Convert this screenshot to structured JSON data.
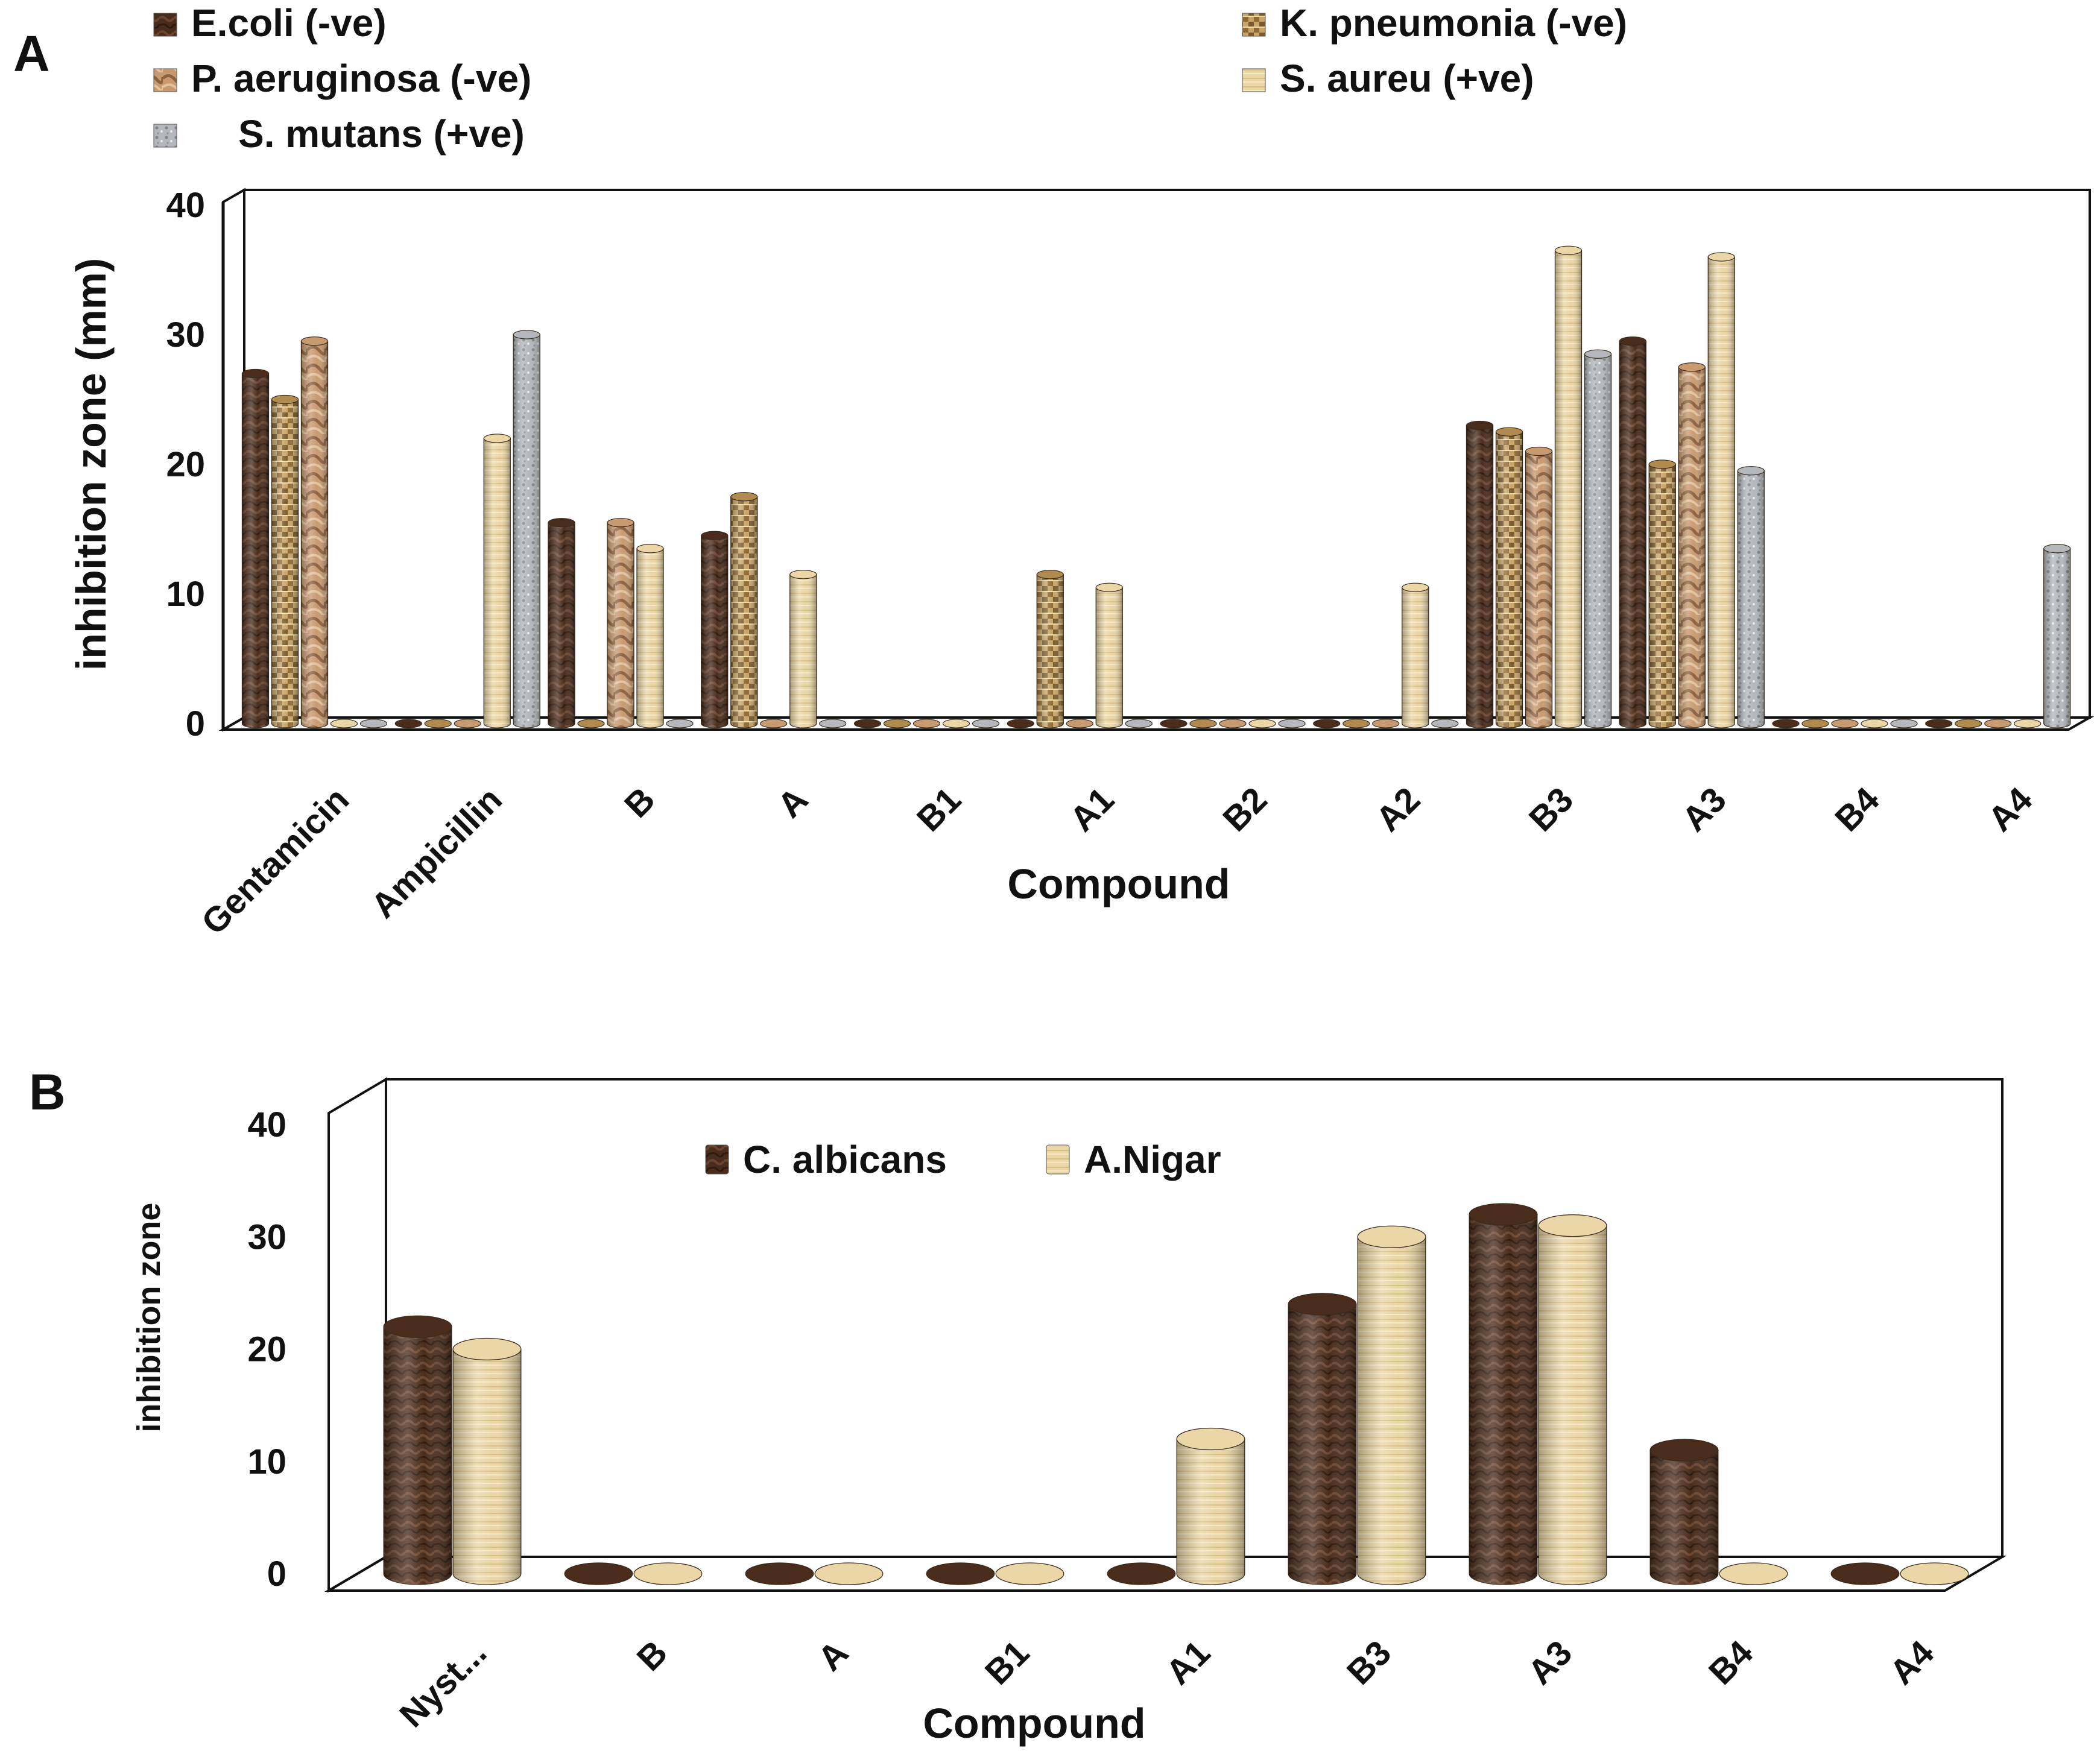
{
  "panels": {
    "a_letter": "A",
    "b_letter": "B"
  },
  "chart_data": [
    {
      "type": "bar",
      "title": "",
      "xlabel": "Compound",
      "ylabel": "inhibition zone (mm)",
      "ylim": [
        0,
        40
      ],
      "yticks": [
        0,
        10,
        20,
        30,
        40
      ],
      "categories": [
        "Gentamicin",
        "Ampicillin",
        "B",
        "A",
        "B1",
        "A1",
        "B2",
        "A2",
        "B3",
        "A3",
        "B4",
        "A4"
      ],
      "series": [
        {
          "name": "E.coli (-ve)",
          "color": "#4a2c1c",
          "values": [
            27,
            0,
            15.5,
            14.5,
            0,
            0,
            0,
            0,
            23,
            29.5,
            0,
            0
          ]
        },
        {
          "name": "K. pneumonia (-ve)",
          "color": "#b08a4e",
          "values": [
            25,
            0,
            0,
            17.5,
            0,
            11.5,
            0,
            0,
            22.5,
            20,
            0,
            0
          ]
        },
        {
          "name": "P. aeruginosa (-ve)",
          "color": "#c89a70",
          "values": [
            29.5,
            0,
            15.5,
            0,
            0,
            0,
            0,
            0,
            21,
            27.5,
            0,
            0
          ]
        },
        {
          "name": "S. aureu (+ve)",
          "color": "#ead6a6",
          "values": [
            0,
            22,
            13.5,
            11.5,
            0,
            10.5,
            0,
            10.5,
            36.5,
            36,
            0,
            0
          ]
        },
        {
          "name": "S. mutans (+ve)",
          "color": "#b4b8bc",
          "values": [
            0,
            30,
            0,
            0,
            0,
            0,
            0,
            0,
            28.5,
            19.5,
            0,
            13.5
          ]
        }
      ]
    },
    {
      "type": "bar",
      "title": "",
      "xlabel": "Compound",
      "ylabel": "inhibition zone",
      "ylim": [
        0,
        40
      ],
      "yticks": [
        0,
        10,
        20,
        30,
        40
      ],
      "categories": [
        "Nyst...",
        "B",
        "A",
        "B1",
        "A1",
        "B3",
        "A3",
        "B4",
        "A4"
      ],
      "series": [
        {
          "name": "C. albicans",
          "color": "#4a2c1c",
          "values": [
            22,
            0,
            0,
            0,
            0,
            24,
            32,
            11,
            0
          ]
        },
        {
          "name": "A.Nigar",
          "color": "#ead6a6",
          "values": [
            20,
            0,
            0,
            0,
            12,
            30,
            31,
            0,
            0
          ]
        }
      ]
    }
  ]
}
